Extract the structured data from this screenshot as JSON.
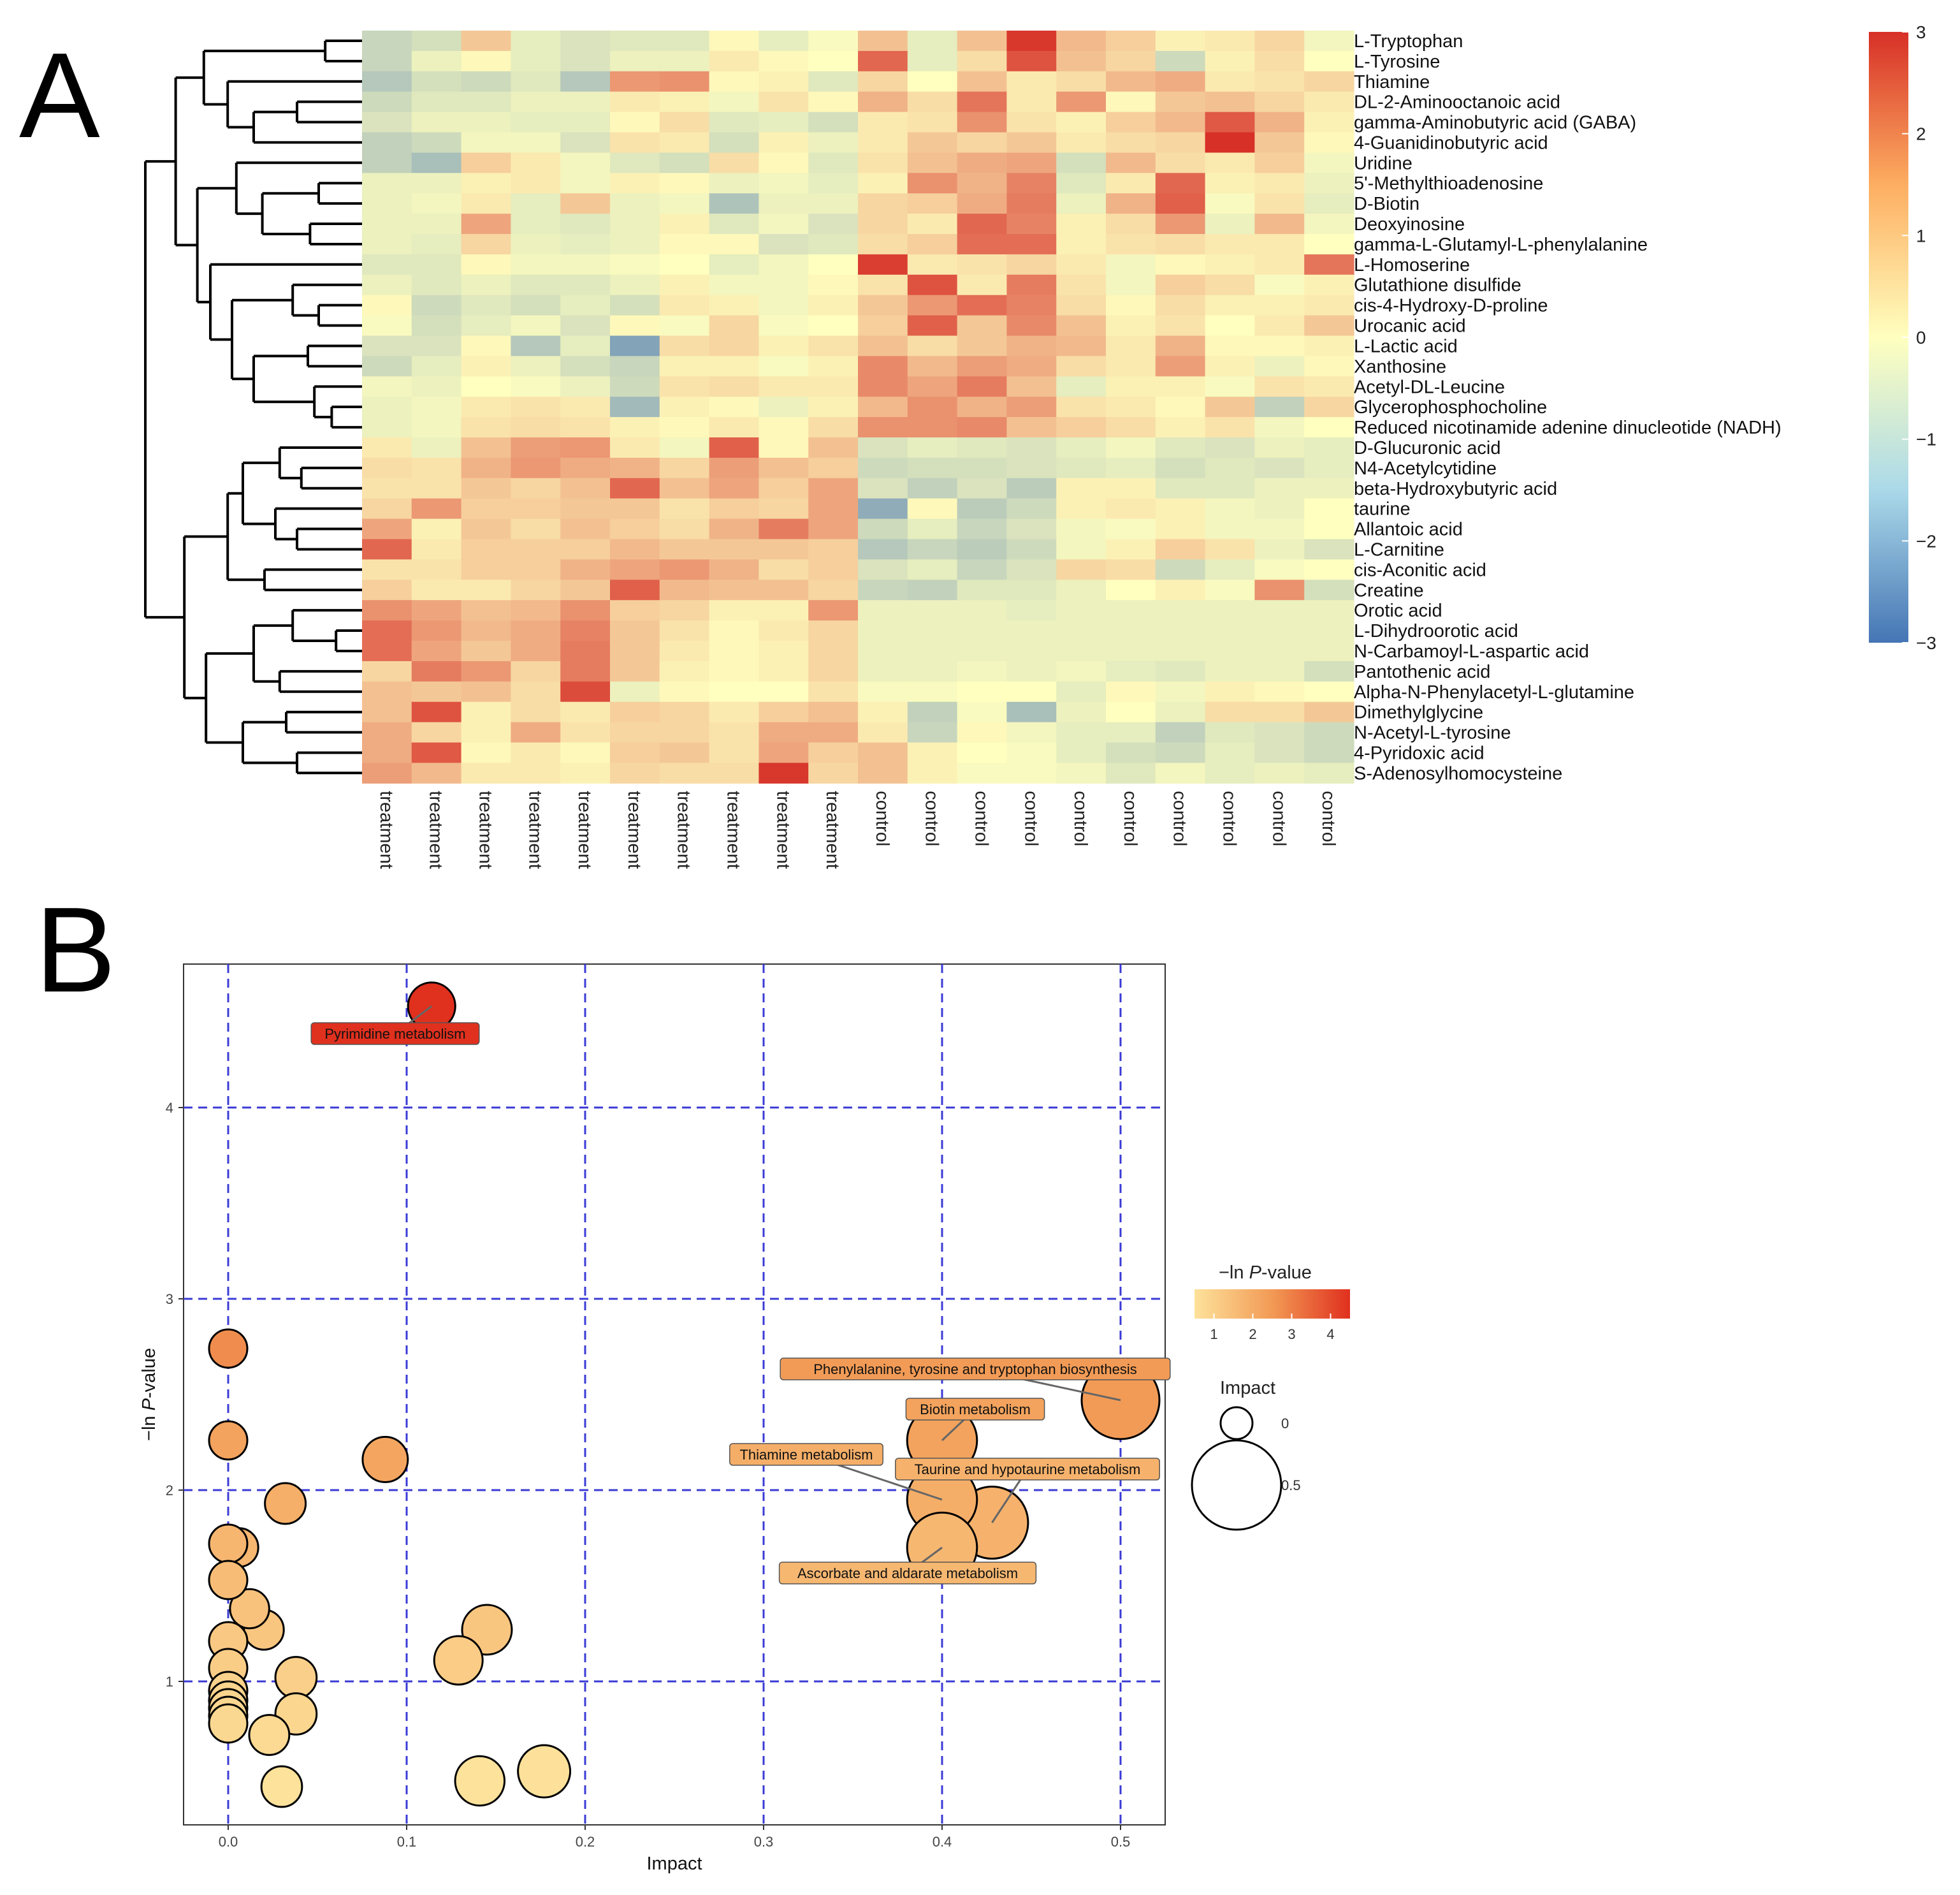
{
  "chart_data": [
    {
      "panel": "A",
      "type": "heatmap",
      "title": "",
      "columns": [
        "treatment",
        "treatment",
        "treatment",
        "treatment",
        "treatment",
        "treatment",
        "treatment",
        "treatment",
        "treatment",
        "treatment",
        "control",
        "control",
        "control",
        "control",
        "control",
        "control",
        "control",
        "control",
        "control",
        "control"
      ],
      "rows": [
        "L-Tryptophan",
        "L-Tyrosine",
        "Thiamine",
        "DL-2-Aminooctanoic acid",
        "gamma-Aminobutyric acid (GABA)",
        "4-Guanidinobutyric acid",
        "Uridine",
        "5'-Methylthioadenosine",
        "D-Biotin",
        "Deoxyinosine",
        "gamma-L-Glutamyl-L-phenylalanine",
        "L-Homoserine",
        "Glutathione disulfide",
        "cis-4-Hydroxy-D-proline",
        "Urocanic acid",
        "L-Lactic acid",
        "Xanthosine",
        "Acetyl-DL-Leucine",
        "Glycerophosphocholine",
        "Reduced nicotinamide adenine dinucleotide (NADH)",
        "D-Glucuronic acid",
        "N4-Acetylcytidine",
        "beta-Hydroxybutyric acid",
        "taurine",
        "Allantoic acid",
        "L-Carnitine",
        "cis-Aconitic acid",
        "Creatine",
        "Orotic acid",
        "L-Dihydroorotic acid",
        "N-Carbamoyl-L-aspartic acid",
        "Pantothenic acid",
        "Alpha-N-Phenylacetyl-L-glutamine",
        "Dimethylglycine",
        "N-Acetyl-L-tyrosine",
        "4-Pyridoxic acid",
        "S-Adenosylhomocysteine"
      ],
      "values": [
        [
          -0.9,
          -0.7,
          0.8,
          -0.4,
          -0.6,
          -0.5,
          -0.5,
          0.1,
          -0.4,
          -0.1,
          0.9,
          -0.4,
          0.9,
          2.9,
          1.0,
          0.7,
          0.2,
          0.3,
          0.6,
          -0.2
        ],
        [
          -0.9,
          -0.3,
          0.1,
          -0.4,
          -0.6,
          -0.3,
          -0.3,
          0.3,
          0.1,
          0.0,
          2.2,
          -0.4,
          0.5,
          2.5,
          0.9,
          0.6,
          -0.8,
          0.2,
          0.5,
          0.0
        ],
        [
          -1.2,
          -0.7,
          -0.8,
          -0.5,
          -1.2,
          1.5,
          1.6,
          0.1,
          0.2,
          -0.5,
          0.6,
          0.0,
          0.9,
          0.3,
          0.5,
          1.0,
          1.2,
          0.3,
          0.4,
          0.6
        ],
        [
          -0.8,
          -0.5,
          -0.5,
          -0.3,
          -0.3,
          0.3,
          0.2,
          -0.2,
          0.4,
          0.1,
          1.1,
          0.5,
          2.0,
          0.3,
          1.5,
          0.1,
          0.8,
          0.9,
          0.6,
          0.3
        ],
        [
          -0.6,
          -0.3,
          -0.3,
          -0.4,
          -0.4,
          0.1,
          0.5,
          -0.5,
          -0.4,
          -0.7,
          0.3,
          0.4,
          1.6,
          0.4,
          0.2,
          0.7,
          1.0,
          2.4,
          1.1,
          0.2
        ],
        [
          -1.0,
          -0.8,
          -0.2,
          -0.2,
          -0.6,
          0.4,
          0.3,
          -0.7,
          0.2,
          -0.3,
          0.3,
          0.8,
          0.6,
          0.8,
          0.3,
          0.5,
          0.6,
          3.0,
          0.8,
          0.1
        ],
        [
          -1.0,
          -1.4,
          0.7,
          0.3,
          -0.2,
          -0.5,
          -0.7,
          0.5,
          0.1,
          -0.5,
          0.4,
          0.9,
          1.2,
          1.3,
          -0.7,
          1.0,
          0.5,
          0.3,
          0.7,
          -0.2
        ],
        [
          -0.3,
          -0.3,
          0.2,
          0.3,
          -0.2,
          0.2,
          0.1,
          -0.3,
          -0.2,
          -0.4,
          0.2,
          1.6,
          1.1,
          1.8,
          -0.5,
          0.3,
          2.2,
          0.2,
          0.3,
          -0.3
        ],
        [
          -0.3,
          -0.2,
          0.3,
          -0.4,
          0.8,
          -0.3,
          -0.2,
          -1.3,
          -0.3,
          -0.3,
          0.6,
          0.7,
          1.2,
          1.9,
          -0.3,
          1.1,
          2.3,
          -0.1,
          0.4,
          -0.4
        ],
        [
          -0.3,
          -0.3,
          1.3,
          -0.4,
          -0.5,
          -0.3,
          0.2,
          -0.5,
          -0.2,
          -0.6,
          0.6,
          0.3,
          2.2,
          1.8,
          0.2,
          0.5,
          1.5,
          -0.3,
          1.0,
          -0.2
        ],
        [
          -0.3,
          -0.4,
          0.6,
          -0.3,
          -0.4,
          -0.3,
          0.1,
          0.1,
          -0.6,
          -0.5,
          0.5,
          0.7,
          2.1,
          2.1,
          0.2,
          0.4,
          0.5,
          0.3,
          0.3,
          0.0
        ],
        [
          -0.5,
          -0.5,
          0.1,
          -0.2,
          -0.2,
          -0.1,
          0.0,
          -0.4,
          -0.2,
          0.0,
          2.8,
          0.3,
          0.4,
          0.6,
          0.3,
          -0.2,
          0.1,
          0.2,
          0.3,
          2.0
        ],
        [
          -0.3,
          -0.5,
          -0.3,
          -0.5,
          -0.5,
          -0.3,
          0.2,
          -0.2,
          -0.2,
          0.1,
          0.4,
          2.5,
          0.3,
          1.9,
          0.4,
          -0.2,
          0.7,
          0.5,
          -0.1,
          0.2
        ],
        [
          0.1,
          -0.8,
          -0.5,
          -0.7,
          -0.4,
          -0.7,
          0.3,
          0.2,
          -0.2,
          0.2,
          0.8,
          1.5,
          2.1,
          1.8,
          0.5,
          0.1,
          0.5,
          0.2,
          0.2,
          0.3
        ],
        [
          -0.1,
          -0.7,
          -0.4,
          -0.2,
          -0.6,
          0.1,
          -0.1,
          0.6,
          -0.1,
          0.0,
          0.7,
          2.3,
          0.8,
          1.7,
          0.9,
          0.2,
          0.4,
          0.0,
          0.3,
          0.8
        ],
        [
          -0.6,
          -0.6,
          0.1,
          -1.2,
          -0.4,
          -2.0,
          0.5,
          0.6,
          0.2,
          0.4,
          0.9,
          0.5,
          0.8,
          1.1,
          1.0,
          0.3,
          1.1,
          0.1,
          0.1,
          0.2
        ],
        [
          -0.8,
          -0.4,
          0.2,
          -0.3,
          -0.7,
          -0.9,
          0.2,
          0.2,
          -0.1,
          0.2,
          1.7,
          1.0,
          1.4,
          1.2,
          0.5,
          0.3,
          1.4,
          0.2,
          -0.3,
          0.1
        ],
        [
          -0.2,
          -0.3,
          0.0,
          -0.1,
          -0.3,
          -0.8,
          0.4,
          0.5,
          0.3,
          0.3,
          1.7,
          1.3,
          1.9,
          0.9,
          -0.4,
          0.2,
          0.2,
          -0.1,
          0.4,
          0.3
        ],
        [
          -0.3,
          -0.2,
          0.3,
          0.4,
          0.3,
          -1.5,
          0.2,
          0.1,
          -0.3,
          0.2,
          1.0,
          1.6,
          1.1,
          1.4,
          0.4,
          0.3,
          0.1,
          0.8,
          -1.0,
          0.6
        ],
        [
          -0.3,
          -0.2,
          0.4,
          0.5,
          0.4,
          0.2,
          0.1,
          0.3,
          0.1,
          0.5,
          1.6,
          1.6,
          1.7,
          0.9,
          0.7,
          0.5,
          0.2,
          0.4,
          -0.2,
          0.0
        ],
        [
          0.3,
          -0.3,
          0.9,
          1.4,
          1.5,
          0.3,
          -0.2,
          2.3,
          0.1,
          0.9,
          -0.6,
          -0.4,
          -0.5,
          -0.6,
          -0.4,
          -0.2,
          -0.5,
          -0.6,
          -0.3,
          -0.4
        ],
        [
          0.5,
          0.4,
          1.1,
          1.5,
          1.2,
          1.1,
          0.6,
          1.4,
          0.9,
          0.7,
          -0.8,
          -0.7,
          -0.7,
          -0.6,
          -0.5,
          -0.4,
          -0.7,
          -0.5,
          -0.6,
          -0.4
        ],
        [
          0.4,
          0.4,
          0.8,
          0.6,
          0.9,
          2.2,
          0.9,
          1.3,
          0.7,
          1.3,
          -0.6,
          -1.0,
          -0.6,
          -1.1,
          0.2,
          0.2,
          -0.5,
          -0.5,
          -0.3,
          -0.3
        ],
        [
          0.6,
          1.5,
          0.7,
          0.7,
          0.8,
          0.8,
          0.4,
          0.7,
          0.6,
          1.3,
          -1.8,
          0.1,
          -1.1,
          -0.8,
          0.2,
          0.3,
          0.2,
          -0.2,
          -0.3,
          0.0
        ],
        [
          1.3,
          0.2,
          0.8,
          0.5,
          0.9,
          0.7,
          0.5,
          1.1,
          1.9,
          1.3,
          -0.8,
          -0.4,
          -0.9,
          -0.6,
          -0.2,
          -0.1,
          0.2,
          -0.2,
          -0.2,
          0.0
        ],
        [
          2.2,
          0.3,
          0.7,
          0.7,
          0.7,
          1.0,
          0.8,
          0.8,
          0.8,
          0.7,
          -1.2,
          -0.9,
          -1.1,
          -0.8,
          -0.2,
          0.2,
          0.7,
          0.4,
          -0.3,
          -0.6
        ],
        [
          0.4,
          0.4,
          0.7,
          0.7,
          1.1,
          1.3,
          1.5,
          1.1,
          0.5,
          0.7,
          -0.6,
          -0.4,
          -0.9,
          -0.6,
          0.6,
          0.5,
          -0.8,
          -0.4,
          -0.1,
          0.0
        ],
        [
          0.7,
          0.3,
          0.3,
          0.6,
          0.8,
          2.3,
          1.0,
          0.9,
          0.9,
          0.6,
          -0.9,
          -1.0,
          -0.5,
          -0.5,
          -0.3,
          0.0,
          0.2,
          -0.1,
          1.6,
          -0.7
        ],
        [
          1.6,
          1.3,
          0.9,
          1.0,
          1.6,
          0.7,
          0.6,
          0.2,
          0.2,
          1.5,
          -0.3,
          -0.3,
          -0.3,
          -0.4,
          -0.3,
          -0.3,
          -0.3,
          -0.3,
          -0.3,
          -0.3
        ],
        [
          2.1,
          1.5,
          1.0,
          1.2,
          1.8,
          0.8,
          0.4,
          0.1,
          0.3,
          0.6,
          -0.3,
          -0.3,
          -0.3,
          -0.3,
          -0.3,
          -0.3,
          -0.3,
          -0.3,
          -0.3,
          -0.3
        ],
        [
          2.1,
          1.3,
          0.8,
          1.2,
          1.9,
          0.8,
          0.3,
          0.1,
          0.2,
          0.6,
          -0.3,
          -0.3,
          -0.3,
          -0.3,
          -0.3,
          -0.3,
          -0.3,
          -0.3,
          -0.3,
          -0.3
        ],
        [
          0.6,
          1.9,
          1.5,
          0.6,
          1.9,
          0.8,
          0.2,
          0.1,
          0.2,
          0.6,
          -0.3,
          -0.3,
          -0.2,
          -0.3,
          -0.2,
          -0.4,
          -0.5,
          -0.3,
          -0.3,
          -0.7
        ],
        [
          0.9,
          0.8,
          0.9,
          0.5,
          2.6,
          -0.3,
          0.1,
          0.0,
          0.0,
          0.4,
          -0.1,
          -0.1,
          0.0,
          0.0,
          -0.4,
          0.1,
          -0.2,
          0.2,
          0.1,
          0.0
        ],
        [
          0.9,
          2.5,
          0.2,
          0.5,
          0.3,
          0.7,
          0.6,
          0.3,
          0.7,
          0.9,
          0.2,
          -1.0,
          -0.1,
          -1.4,
          -0.3,
          0.0,
          -0.3,
          0.5,
          0.5,
          0.8
        ],
        [
          1.2,
          0.6,
          0.2,
          1.2,
          0.4,
          0.6,
          0.6,
          0.4,
          1.2,
          1.2,
          0.3,
          -0.9,
          0.1,
          -0.2,
          -0.4,
          -0.4,
          -1.0,
          -0.5,
          -0.6,
          -0.8
        ],
        [
          1.2,
          2.4,
          0.1,
          0.3,
          0.1,
          0.7,
          0.8,
          0.4,
          1.3,
          0.7,
          0.9,
          0.2,
          0.0,
          -0.1,
          -0.4,
          -0.7,
          -0.8,
          -0.4,
          -0.6,
          -0.8
        ],
        [
          1.4,
          1.0,
          0.3,
          0.3,
          0.2,
          0.6,
          0.5,
          0.5,
          2.9,
          0.6,
          0.9,
          0.2,
          -0.1,
          -0.1,
          -0.2,
          -0.5,
          -0.2,
          -0.4,
          -0.3,
          -0.4
        ]
      ],
      "colorbar": {
        "min": -3,
        "max": 3,
        "ticks": [
          "3",
          "2",
          "1",
          "0",
          "−1",
          "−2",
          "−3"
        ],
        "low_color": "#4575b4",
        "mid_color": "#ffffbf",
        "high_color": "#d73027"
      }
    },
    {
      "panel": "B",
      "type": "scatter",
      "title": "",
      "xlabel": "Impact",
      "ylabel_prefix": "−ln ",
      "ylabel_italic": "P",
      "ylabel_suffix": "-value",
      "xlim": [
        -0.025,
        0.525
      ],
      "ylim": [
        0.25,
        4.75
      ],
      "xticks": [
        "0.0",
        "0.1",
        "0.2",
        "0.3",
        "0.4",
        "0.5"
      ],
      "xtick_values": [
        0,
        0.1,
        0.2,
        0.3,
        0.4,
        0.5
      ],
      "yticks": [
        "1",
        "2",
        "3",
        "4"
      ],
      "ytick_values": [
        1,
        2,
        3,
        4
      ],
      "grid_color": "#3b3bd6",
      "points": [
        {
          "x": 0.114,
          "y": 4.53,
          "size": 0.114,
          "label": "Pyrimidine metabolism"
        },
        {
          "x": 0.5,
          "y": 2.47,
          "size": 0.5,
          "label": "Phenylalanine, tyrosine and tryptophan biosynthesis"
        },
        {
          "x": 0.4,
          "y": 2.26,
          "size": 0.4,
          "label": "Biotin metabolism"
        },
        {
          "x": 0.4,
          "y": 1.95,
          "size": 0.4,
          "label": "Thiamine metabolism"
        },
        {
          "x": 0.428,
          "y": 1.83,
          "size": 0.428,
          "label": "Taurine and hypotaurine metabolism"
        },
        {
          "x": 0.4,
          "y": 1.7,
          "size": 0.4,
          "label": "Ascorbate and aldarate metabolism"
        },
        {
          "x": 0.0,
          "y": 2.74,
          "size": 0.0,
          "label": ""
        },
        {
          "x": 0.0,
          "y": 2.26,
          "size": 0.0,
          "label": ""
        },
        {
          "x": 0.088,
          "y": 2.16,
          "size": 0.088,
          "label": ""
        },
        {
          "x": 0.032,
          "y": 1.93,
          "size": 0.032,
          "label": ""
        },
        {
          "x": 0.0,
          "y": 1.72,
          "size": 0.0,
          "label": ""
        },
        {
          "x": 0.006,
          "y": 1.7,
          "size": 0.006,
          "label": ""
        },
        {
          "x": 0.0,
          "y": 1.53,
          "size": 0.0,
          "label": ""
        },
        {
          "x": 0.012,
          "y": 1.38,
          "size": 0.012,
          "label": ""
        },
        {
          "x": 0.02,
          "y": 1.27,
          "size": 0.02,
          "label": ""
        },
        {
          "x": 0.0,
          "y": 1.21,
          "size": 0.0,
          "label": ""
        },
        {
          "x": 0.0,
          "y": 1.07,
          "size": 0.0,
          "label": ""
        },
        {
          "x": 0.038,
          "y": 1.02,
          "size": 0.038,
          "label": ""
        },
        {
          "x": 0.0,
          "y": 0.95,
          "size": 0.0,
          "label": ""
        },
        {
          "x": 0.0,
          "y": 0.9,
          "size": 0.0,
          "label": ""
        },
        {
          "x": 0.0,
          "y": 0.86,
          "size": 0.0,
          "label": ""
        },
        {
          "x": 0.0,
          "y": 0.82,
          "size": 0.0,
          "label": ""
        },
        {
          "x": 0.0,
          "y": 0.78,
          "size": 0.0,
          "label": ""
        },
        {
          "x": 0.038,
          "y": 0.83,
          "size": 0.038,
          "label": ""
        },
        {
          "x": 0.023,
          "y": 0.72,
          "size": 0.023,
          "label": ""
        },
        {
          "x": 0.03,
          "y": 0.45,
          "size": 0.03,
          "label": ""
        },
        {
          "x": 0.145,
          "y": 1.27,
          "size": 0.145,
          "label": ""
        },
        {
          "x": 0.129,
          "y": 1.11,
          "size": 0.129,
          "label": ""
        },
        {
          "x": 0.177,
          "y": 0.53,
          "size": 0.177,
          "label": ""
        },
        {
          "x": 0.141,
          "y": 0.48,
          "size": 0.141,
          "label": ""
        }
      ],
      "color_legend": {
        "title_prefix": "−ln ",
        "title_italic": "P",
        "title_suffix": "-value",
        "min": 0.5,
        "max": 4.5,
        "ticks": [
          "1",
          "2",
          "3",
          "4"
        ],
        "tick_values": [
          1,
          2,
          3,
          4
        ],
        "low_color": "#fde29b",
        "mid_color": "#f29a55",
        "high_color": "#e0301e"
      },
      "size_legend": {
        "title": "Impact",
        "labels": [
          "0",
          "0.5"
        ],
        "values": [
          0,
          0.5
        ]
      }
    }
  ],
  "panels": {
    "a_letter": "A",
    "b_letter": "B"
  }
}
